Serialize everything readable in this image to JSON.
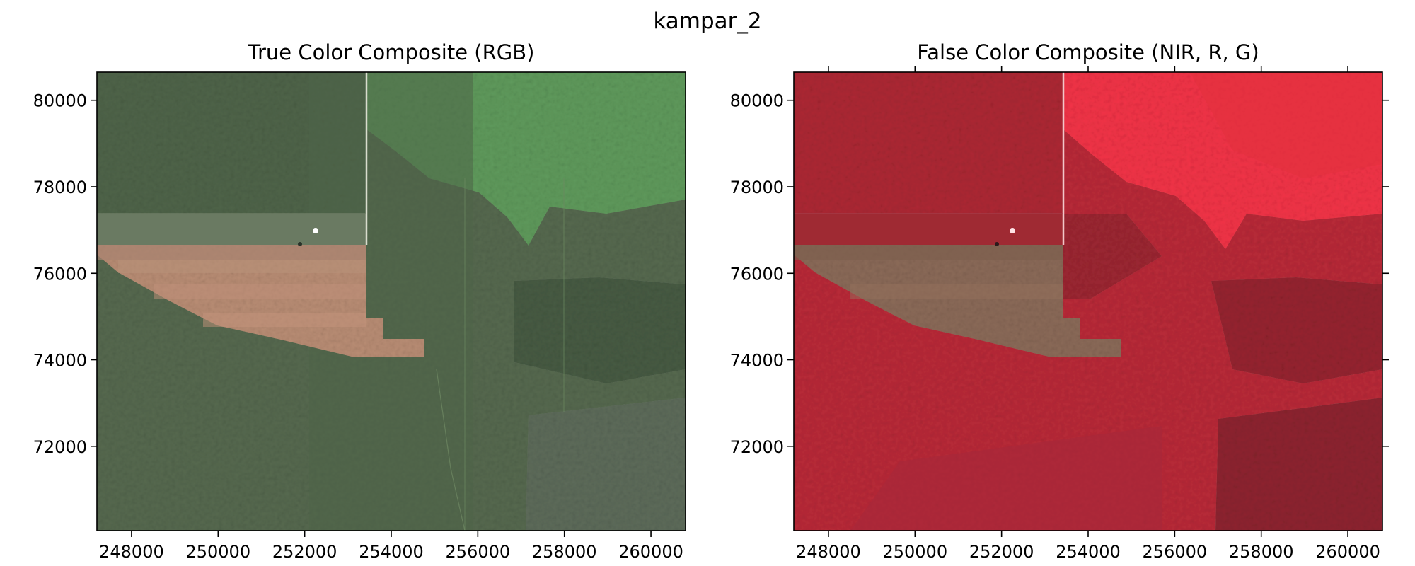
{
  "figure": {
    "suptitle": "kampar_2"
  },
  "panels": [
    {
      "title": "True Color Composite (RGB)",
      "style": "rgb",
      "x_ticks": [
        "248000",
        "250000",
        "252000",
        "254000",
        "256000",
        "258000",
        "260000"
      ],
      "y_ticks": [
        "80000",
        "78000",
        "76000",
        "74000",
        "72000"
      ]
    },
    {
      "title": "False Color Composite (NIR, R, G)",
      "style": "false_color",
      "x_ticks": [
        "248000",
        "250000",
        "252000",
        "254000",
        "256000",
        "258000",
        "260000"
      ],
      "y_ticks": [
        "80000",
        "78000",
        "76000",
        "74000",
        "72000"
      ]
    }
  ],
  "colors": {
    "rgb_forest": "#56694f",
    "rgb_grassland": "#5f9a5c",
    "rgb_cleared": "#b98d74",
    "false_forest": "#b92a38",
    "false_bright": "#f23347",
    "false_cleared": "#8b6a58"
  }
}
